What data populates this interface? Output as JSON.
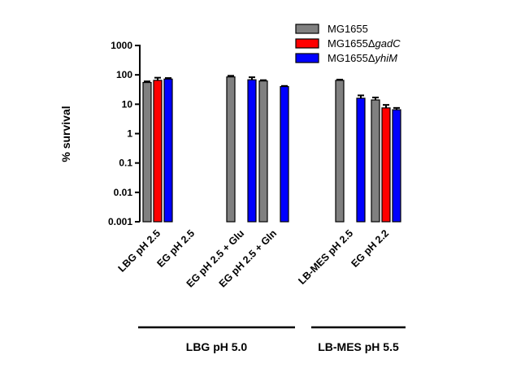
{
  "chart_data": {
    "type": "bar",
    "yscale": "log",
    "ylabel": "% survival",
    "ylim": [
      0.001,
      1000
    ],
    "yticks": [
      {
        "value": 0.001,
        "label": "0.001"
      },
      {
        "value": 0.01,
        "label": "0.01"
      },
      {
        "value": 0.1,
        "label": "0.1"
      },
      {
        "value": 1,
        "label": "1"
      },
      {
        "value": 10,
        "label": "10"
      },
      {
        "value": 100,
        "label": "100"
      },
      {
        "value": 1000,
        "label": "1000"
      }
    ],
    "categories": [
      "LBG pH 2.5",
      "EG pH 2.5",
      "EG pH 2.5 + Glu",
      "EG pH 2.5 + Gln",
      "LB-MES pH 2.5",
      "EG pH 2.2"
    ],
    "series": [
      {
        "name": "MG1655",
        "name_prefix": "MG1655",
        "name_italic": "",
        "color": "#808080",
        "values": [
          55,
          null,
          85,
          62,
          65,
          14
        ],
        "errors": [
          5,
          null,
          8,
          4,
          4,
          3
        ]
      },
      {
        "name": "MG1655ΔgadC",
        "name_prefix": "MG1655Δ",
        "name_italic": "gadC",
        "color": "#ff0000",
        "values": [
          65,
          null,
          null,
          null,
          null,
          7.5
        ],
        "errors": [
          15,
          null,
          null,
          null,
          null,
          2
        ]
      },
      {
        "name": "MG1655ΔyhiM",
        "name_prefix": "MG1655Δ",
        "name_italic": "yhiM",
        "color": "#0000ff",
        "values": [
          72,
          null,
          68,
          40,
          16,
          6.5
        ],
        "errors": [
          6,
          null,
          15,
          2,
          4,
          1
        ]
      }
    ],
    "legend_position": "top-right",
    "groups": [
      {
        "label": "LBG pH 5.0",
        "categories": [
          0,
          1,
          2,
          3
        ]
      },
      {
        "label": "LB-MES pH 5.5",
        "categories": [
          4,
          5
        ]
      }
    ]
  }
}
